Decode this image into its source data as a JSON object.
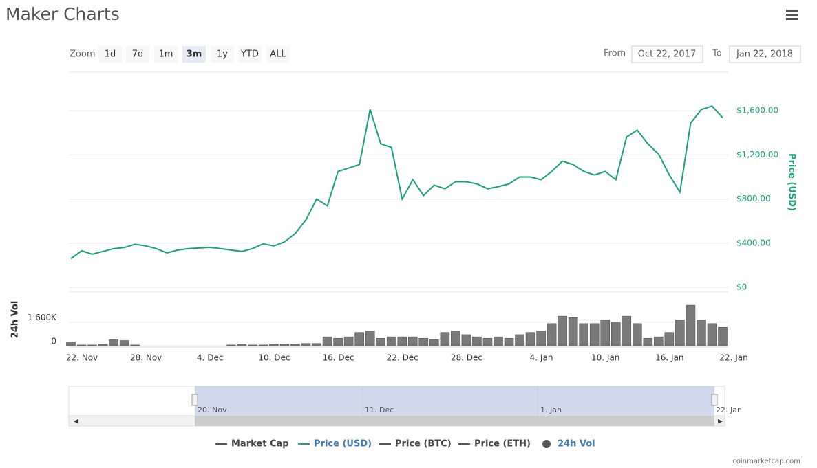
{
  "header": {
    "title": "Maker Charts"
  },
  "toolbar": {
    "zoom_label": "Zoom",
    "zoom_buttons": [
      "1d",
      "7d",
      "1m",
      "3m",
      "1y",
      "YTD",
      "ALL"
    ],
    "selected": 3,
    "from_label": "From",
    "from": "Oct 22, 2017",
    "to_label": "To",
    "to": "Jan 22, 2018"
  },
  "chart_data": [
    {
      "type": "line",
      "series": [
        {
          "name": "Price (USD)",
          "color": "#16a37a",
          "values": [
            260,
            330,
            300,
            325,
            350,
            360,
            390,
            375,
            350,
            312,
            337,
            350,
            356,
            362,
            350,
            337,
            325,
            350,
            394,
            375,
            412,
            487,
            612,
            800,
            737,
            1050,
            1080,
            1112,
            1612,
            1300,
            1268,
            800,
            975,
            831,
            925,
            893,
            956,
            956,
            937,
            893,
            912,
            937,
            1000,
            1000,
            975,
            1050,
            1143,
            1112,
            1050,
            1018,
            1050,
            975,
            1362,
            1425,
            1300,
            1206,
            1018,
            862,
            1487,
            1612,
            1643,
            1537
          ]
        }
      ],
      "ylim": [
        0,
        1950
      ],
      "yticks": [
        {
          "value": 0,
          "label": "$0"
        },
        {
          "value": 400,
          "label": "$400.00"
        },
        {
          "value": 800,
          "label": "$800.00"
        },
        {
          "value": 1200,
          "label": "$1,200.00"
        },
        {
          "value": 1600,
          "label": "$1,600.00"
        }
      ],
      "grid": true
    },
    {
      "type": "bar",
      "categories": [
        "22. Nov",
        null,
        null,
        null,
        null,
        null,
        "28. Nov",
        null,
        null,
        null,
        null,
        null,
        "4. Dec",
        null,
        null,
        null,
        null,
        null,
        "10. Dec",
        null,
        null,
        null,
        null,
        null,
        "16. Dec",
        null,
        null,
        null,
        null,
        null,
        "22. Dec",
        null,
        null,
        null,
        null,
        null,
        "28. Dec",
        null,
        null,
        null,
        null,
        null,
        null,
        "4. Jan",
        null,
        null,
        null,
        null,
        null,
        "10. Jan",
        null,
        null,
        null,
        null,
        null,
        "16. Jan",
        null,
        null,
        null,
        null,
        null,
        "22. Jan"
      ],
      "series": [
        {
          "name": "24h Vol",
          "color": "#7a7a7a",
          "values": [
            250000,
            50000,
            50000,
            100000,
            400000,
            350000,
            50000,
            0,
            0,
            0,
            0,
            0,
            0,
            0,
            0,
            50000,
            100000,
            50000,
            50000,
            100000,
            100000,
            100000,
            150000,
            150000,
            600000,
            500000,
            600000,
            900000,
            1000000,
            500000,
            600000,
            600000,
            600000,
            500000,
            400000,
            900000,
            1000000,
            750000,
            600000,
            500000,
            600000,
            500000,
            750000,
            900000,
            1000000,
            1500000,
            2000000,
            1900000,
            1500000,
            1500000,
            1750000,
            1600000,
            2000000,
            1500000,
            500000,
            600000,
            900000,
            1750000,
            2750000,
            1750000,
            1500000,
            1250000
          ]
        }
      ],
      "ylim": [
        0,
        3500000
      ],
      "yticks": [
        0,
        {
          "value": 1600000,
          "label": "1 600K"
        }
      ],
      "grid": true
    }
  ],
  "navigator": {
    "labels": [
      "20. Nov",
      "11. Dec",
      "1. Jan",
      "22. Jan"
    ]
  },
  "legend": {
    "hidden": [
      {
        "name": "Market Cap",
        "color": "#555555"
      },
      {
        "name": "Price (BTC)",
        "color": "#555555"
      },
      {
        "name": "Price (ETH)",
        "color": "#555555"
      }
    ]
  },
  "footer": {
    "credit": "coinmarketcap.com"
  }
}
